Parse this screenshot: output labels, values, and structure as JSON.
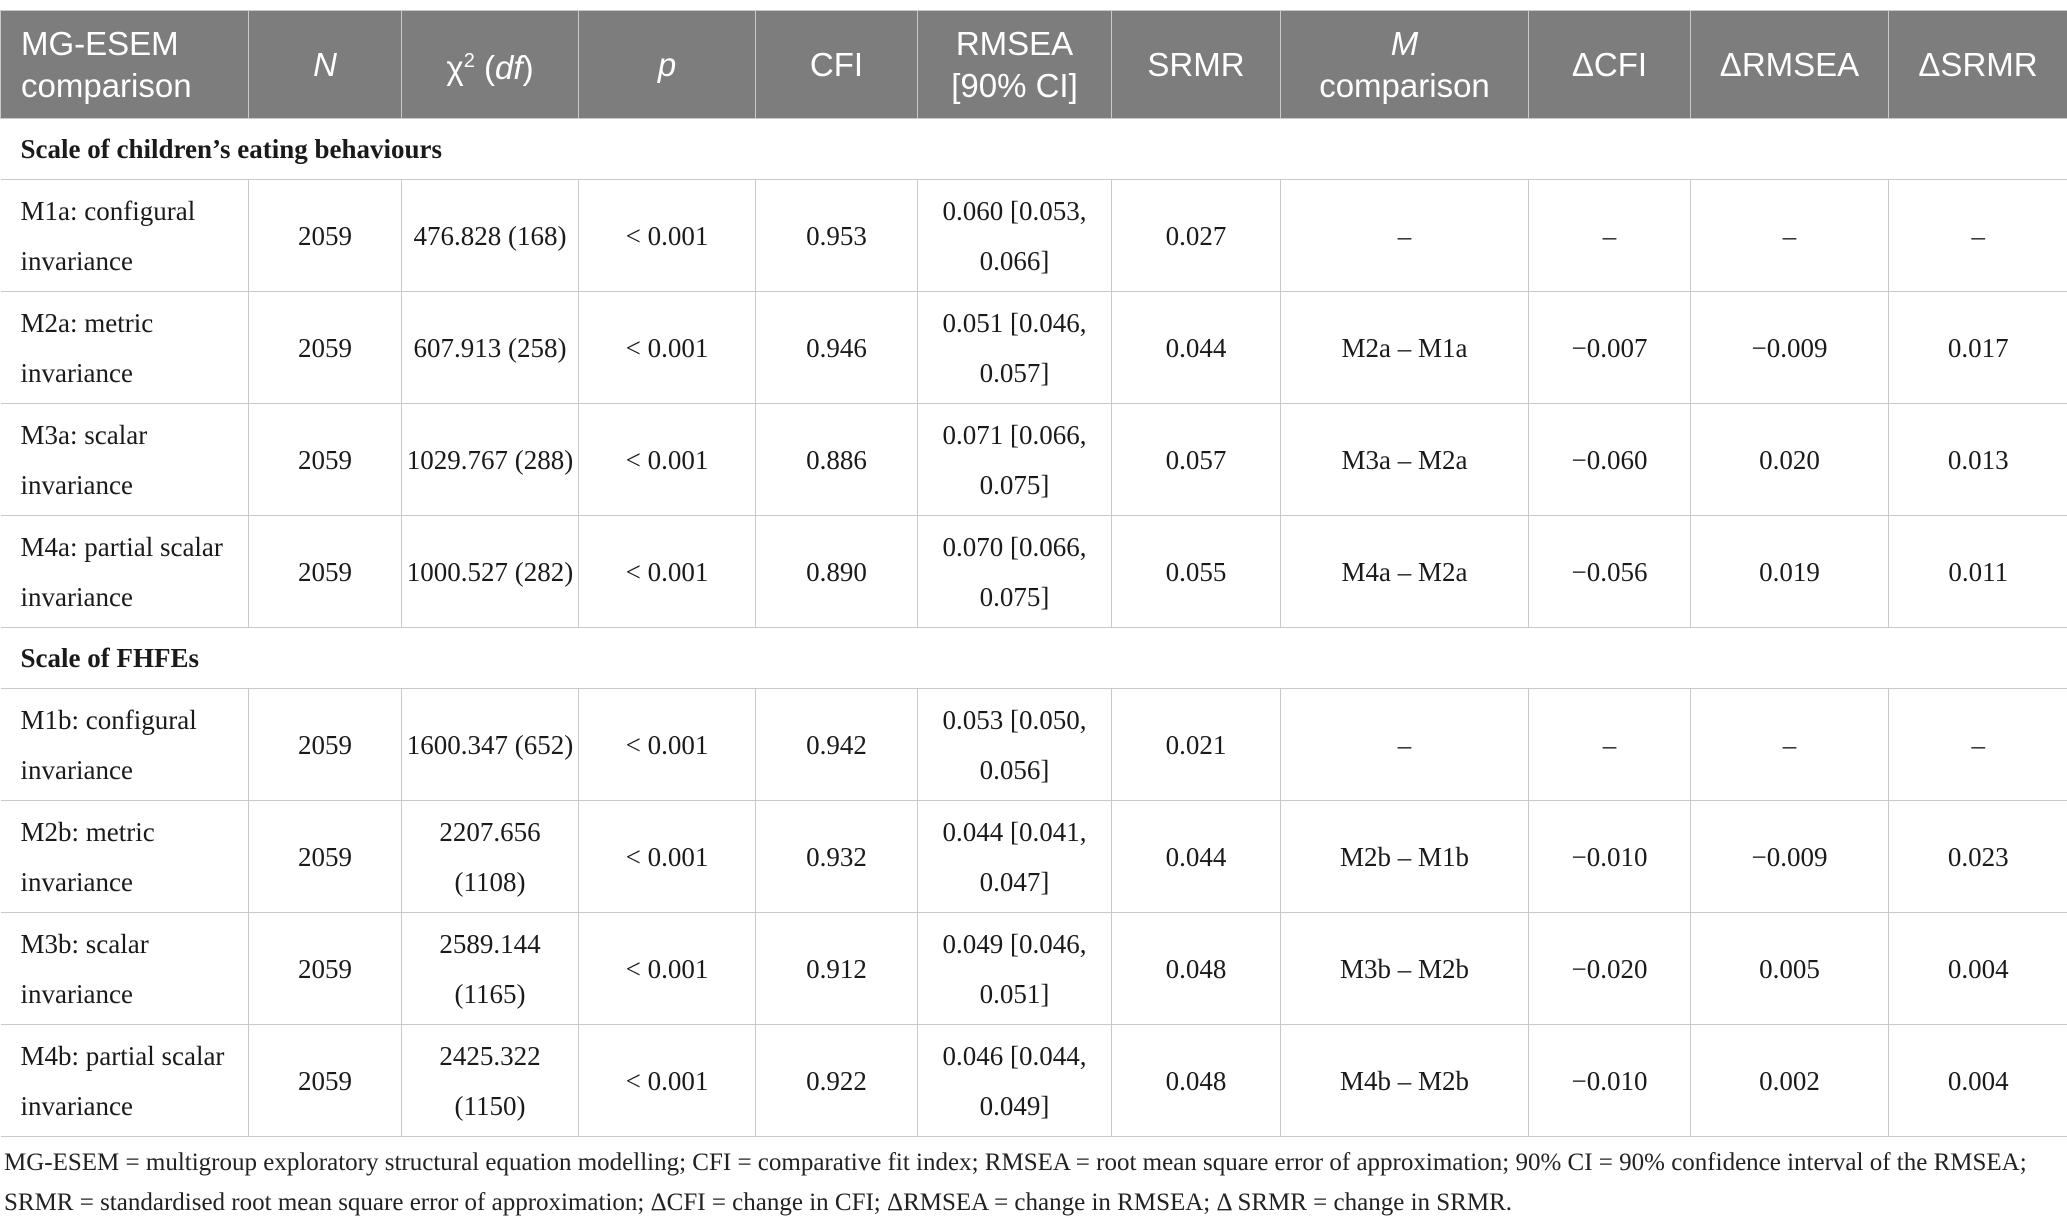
{
  "table": {
    "headers": {
      "model": "MG-ESEM comparison",
      "n": "N",
      "chi2_symbol": "χ",
      "chi2_sup": "2",
      "chi2_df_open": " (",
      "chi2_df": "df",
      "chi2_df_close": ")",
      "p": "p",
      "cfi": "CFI",
      "rmsea": "RMSEA [90% CI]",
      "srmr": "SRMR",
      "m_italic": "M",
      "m_rest": "comparison",
      "dcfi": "ΔCFI",
      "drmsea": "ΔRMSEA",
      "dsrmr": "ΔSRMR"
    },
    "sections": [
      {
        "title": "Scale of children’s eating behaviours",
        "rows": [
          {
            "model": "M1a: configural invariance",
            "n": "2059",
            "chi2": "476.828 (168)",
            "p": "< 0.001",
            "cfi": "0.953",
            "rmsea": "0.060 [0.053, 0.066]",
            "srmr": "0.027",
            "comparison": "–",
            "dcfi": "–",
            "drmsea": "–",
            "dsrmr": "–"
          },
          {
            "model": "M2a: metric invariance",
            "n": "2059",
            "chi2": "607.913 (258)",
            "p": "< 0.001",
            "cfi": "0.946",
            "rmsea": "0.051 [0.046, 0.057]",
            "srmr": "0.044",
            "comparison": "M2a – M1a",
            "dcfi": "−0.007",
            "drmsea": "−0.009",
            "dsrmr": "0.017"
          },
          {
            "model": "M3a: scalar invariance",
            "n": "2059",
            "chi2": "1029.767 (288)",
            "p": "< 0.001",
            "cfi": "0.886",
            "rmsea": "0.071 [0.066, 0.075]",
            "srmr": "0.057",
            "comparison": "M3a – M2a",
            "dcfi": "−0.060",
            "drmsea": "0.020",
            "dsrmr": "0.013"
          },
          {
            "model": "M4a: partial scalar invariance",
            "n": "2059",
            "chi2": "1000.527 (282)",
            "p": "< 0.001",
            "cfi": "0.890",
            "rmsea": "0.070 [0.066, 0.075]",
            "srmr": "0.055",
            "comparison": "M4a – M2a",
            "dcfi": "−0.056",
            "drmsea": "0.019",
            "dsrmr": "0.011"
          }
        ]
      },
      {
        "title": "Scale of FHFEs",
        "rows": [
          {
            "model": "M1b: configural invariance",
            "n": "2059",
            "chi2": "1600.347 (652)",
            "p": "< 0.001",
            "cfi": "0.942",
            "rmsea": "0.053 [0.050, 0.056]",
            "srmr": "0.021",
            "comparison": "–",
            "dcfi": "–",
            "drmsea": "–",
            "dsrmr": "–"
          },
          {
            "model": "M2b: metric invariance",
            "n": "2059",
            "chi2": "2207.656 (1108)",
            "p": "< 0.001",
            "cfi": "0.932",
            "rmsea": "0.044 [0.041, 0.047]",
            "srmr": "0.044",
            "comparison": "M2b – M1b",
            "dcfi": "−0.010",
            "drmsea": "−0.009",
            "dsrmr": "0.023"
          },
          {
            "model": "M3b: scalar invariance",
            "n": "2059",
            "chi2": "2589.144 (1165)",
            "p": "< 0.001",
            "cfi": "0.912",
            "rmsea": "0.049 [0.046, 0.051]",
            "srmr": "0.048",
            "comparison": "M3b – M2b",
            "dcfi": "−0.020",
            "drmsea": "0.005",
            "dsrmr": "0.004"
          },
          {
            "model": "M4b: partial scalar invariance",
            "n": "2059",
            "chi2": "2425.322 (1150)",
            "p": "< 0.001",
            "cfi": "0.922",
            "rmsea": "0.046 [0.044, 0.049]",
            "srmr": "0.048",
            "comparison": "M4b – M2b",
            "dcfi": "−0.010",
            "drmsea": "0.002",
            "dsrmr": "0.004"
          }
        ]
      }
    ]
  },
  "footnote": "MG-ESEM = multigroup exploratory structural equation modelling; CFI = comparative fit index; RMSEA = root mean square error of approximation; 90% CI = 90% confidence interval of the RMSEA; SRMR = standardised root mean square error of approximation; ΔCFI = change in CFI; ΔRMSEA = change in RMSEA; Δ SRMR = change in SRMR."
}
